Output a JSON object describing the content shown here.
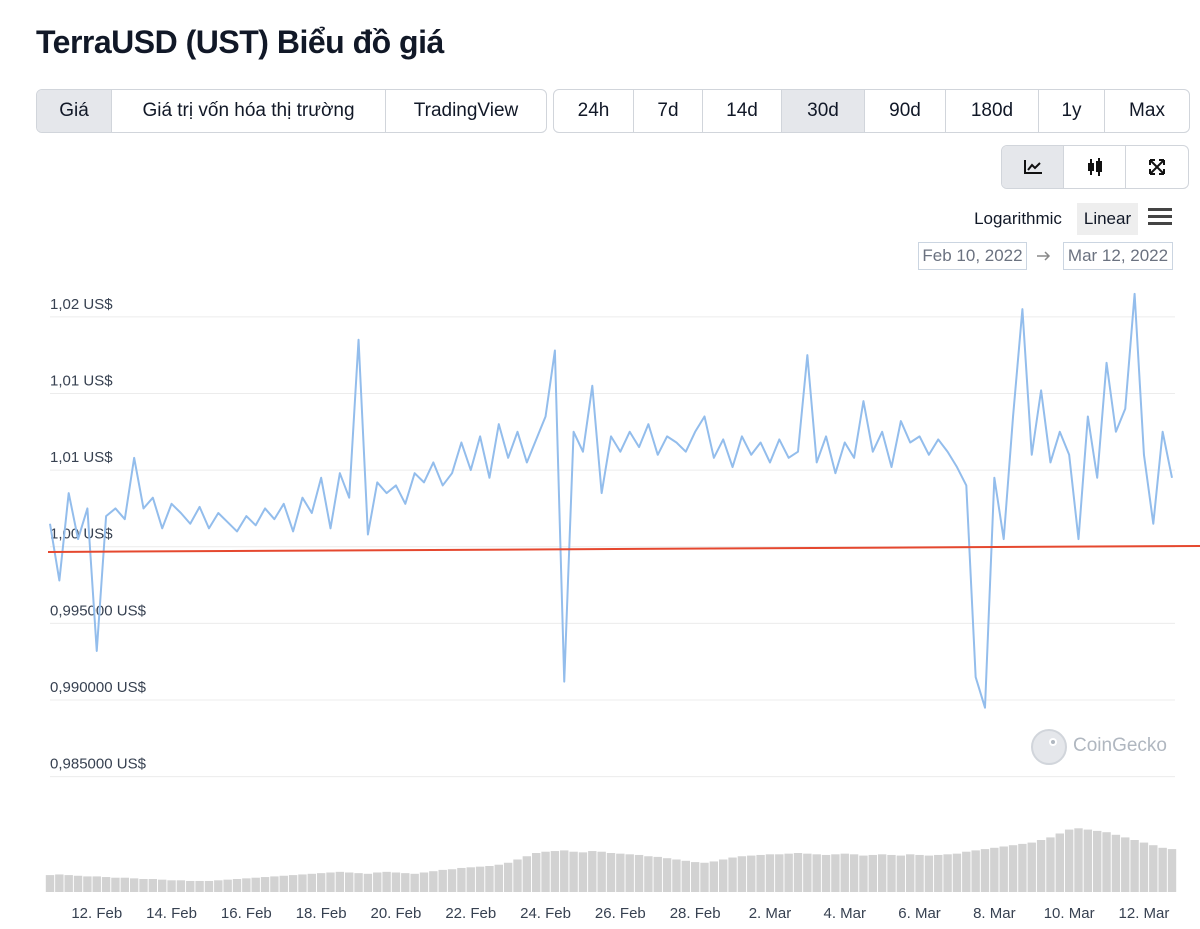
{
  "header": {
    "title": "TerraUSD (UST) Biểu đồ giá"
  },
  "tabs": {
    "metric": [
      {
        "label": "Giá",
        "selected": true
      },
      {
        "label": "Giá trị vốn hóa thị trường",
        "selected": false
      },
      {
        "label": "TradingView",
        "selected": false
      }
    ],
    "range": [
      {
        "label": "24h",
        "selected": false
      },
      {
        "label": "7d",
        "selected": false
      },
      {
        "label": "14d",
        "selected": false
      },
      {
        "label": "30d",
        "selected": true
      },
      {
        "label": "90d",
        "selected": false
      },
      {
        "label": "180d",
        "selected": false
      },
      {
        "label": "1y",
        "selected": false
      },
      {
        "label": "Max",
        "selected": false
      }
    ]
  },
  "scale": {
    "options": [
      "Logarithmic",
      "Linear"
    ],
    "log_scale": false
  },
  "date_range": {
    "start": "Feb 10, 2022",
    "end": "Mar 12, 2022"
  },
  "watermark": "CoinGecko",
  "chart_data": {
    "type": "line",
    "color": "#93bdec",
    "categories": [
      null,
      null,
      null,
      null,
      null,
      "12. Feb",
      null,
      null,
      null,
      null,
      null,
      null,
      null,
      "14. Feb",
      null,
      null,
      null,
      null,
      null,
      null,
      null,
      "16. Feb",
      null,
      null,
      null,
      null,
      null,
      null,
      null,
      "18. Feb",
      null,
      null,
      null,
      null,
      null,
      null,
      null,
      "20. Feb",
      null,
      null,
      null,
      null,
      null,
      null,
      null,
      "22. Feb",
      null,
      null,
      null,
      null,
      null,
      null,
      null,
      "24. Feb",
      null,
      null,
      null,
      null,
      null,
      null,
      null,
      "26. Feb",
      null,
      null,
      null,
      null,
      null,
      null,
      null,
      "28. Feb",
      null,
      null,
      null,
      null,
      null,
      null,
      null,
      "2. Mar",
      null,
      null,
      null,
      null,
      null,
      null,
      null,
      "4. Mar",
      null,
      null,
      null,
      null,
      null,
      null,
      null,
      "6. Mar",
      null,
      null,
      null,
      null,
      null,
      null,
      null,
      "8. Mar",
      null,
      null,
      null,
      null,
      null,
      null,
      null,
      "10. Mar",
      null,
      null,
      null,
      null,
      null,
      null,
      null,
      "12. Mar",
      null,
      null,
      null
    ],
    "values": [
      1.0015,
      0.9978,
      1.0035,
      1.0005,
      1.0025,
      0.9932,
      1.002,
      1.0025,
      1.0018,
      1.0058,
      1.0025,
      1.0032,
      1.0012,
      1.0028,
      1.0022,
      1.0015,
      1.0026,
      1.0012,
      1.0022,
      1.0016,
      1.001,
      1.002,
      1.0014,
      1.0025,
      1.0018,
      1.0028,
      1.001,
      1.0032,
      1.0022,
      1.0045,
      1.0012,
      1.0048,
      1.0032,
      1.0135,
      1.0008,
      1.0042,
      1.0035,
      1.004,
      1.0028,
      1.0048,
      1.0042,
      1.0055,
      1.004,
      1.0048,
      1.0068,
      1.005,
      1.0072,
      1.0045,
      1.008,
      1.0058,
      1.0075,
      1.0055,
      1.007,
      1.0085,
      1.0128,
      0.9912,
      1.0075,
      1.0062,
      1.0105,
      1.0035,
      1.0072,
      1.0062,
      1.0075,
      1.0065,
      1.008,
      1.006,
      1.0072,
      1.0068,
      1.0062,
      1.0075,
      1.0085,
      1.0058,
      1.007,
      1.0052,
      1.0072,
      1.006,
      1.0068,
      1.0055,
      1.007,
      1.0058,
      1.0062,
      1.0125,
      1.0055,
      1.0072,
      1.0048,
      1.0068,
      1.0058,
      1.0095,
      1.0062,
      1.0075,
      1.0052,
      1.0082,
      1.0068,
      1.0072,
      1.006,
      1.007,
      1.0062,
      1.0052,
      1.004,
      0.9915,
      0.9895,
      1.0045,
      1.0005,
      1.0085,
      1.0155,
      1.006,
      1.0102,
      1.0055,
      1.0075,
      1.006,
      1.0005,
      1.0085,
      1.0045,
      1.012,
      1.0075,
      1.009,
      1.0165,
      1.006,
      1.0015,
      1.0075,
      1.0045
    ],
    "ylim": [
      0.984,
      1.0175
    ],
    "yticks": [
      {
        "value": 1.015,
        "label": "1,02 US$"
      },
      {
        "value": 1.01,
        "label": "1,01 US$"
      },
      {
        "value": 1.005,
        "label": "1,01 US$"
      },
      {
        "value": 1.0,
        "label": "1,00 US$"
      },
      {
        "value": 0.995,
        "label": "0,995000 US$"
      },
      {
        "value": 0.99,
        "label": "0,990000 US$"
      },
      {
        "value": 0.985,
        "label": "0,985000 US$"
      }
    ],
    "grid": true,
    "reference_line": {
      "color": "#e5482f",
      "values": [
        0.99966,
        1.00005
      ]
    },
    "volume": {
      "color": "#d2d2d2",
      "ylim": [
        0,
        100
      ],
      "values": [
        26,
        27,
        26,
        25,
        24,
        24,
        23,
        22,
        22,
        21,
        20,
        20,
        19,
        18,
        18,
        17,
        17,
        17,
        18,
        19,
        20,
        21,
        22,
        23,
        24,
        25,
        26,
        27,
        28,
        29,
        30,
        31,
        30,
        29,
        28,
        30,
        31,
        30,
        29,
        28,
        30,
        32,
        34,
        35,
        37,
        38,
        39,
        40,
        42,
        45,
        50,
        55,
        60,
        62,
        63,
        64,
        62,
        61,
        63,
        62,
        60,
        59,
        58,
        57,
        55,
        54,
        52,
        50,
        48,
        46,
        45,
        47,
        50,
        53,
        55,
        56,
        57,
        58,
        58,
        59,
        60,
        59,
        58,
        57,
        58,
        59,
        58,
        56,
        57,
        58,
        57,
        56,
        58,
        57,
        56,
        57,
        58,
        59,
        62,
        64,
        66,
        68,
        70,
        72,
        74,
        76,
        80,
        84,
        90,
        96,
        98,
        96,
        94,
        92,
        88,
        84,
        80,
        76,
        72,
        68,
        66
      ]
    }
  }
}
